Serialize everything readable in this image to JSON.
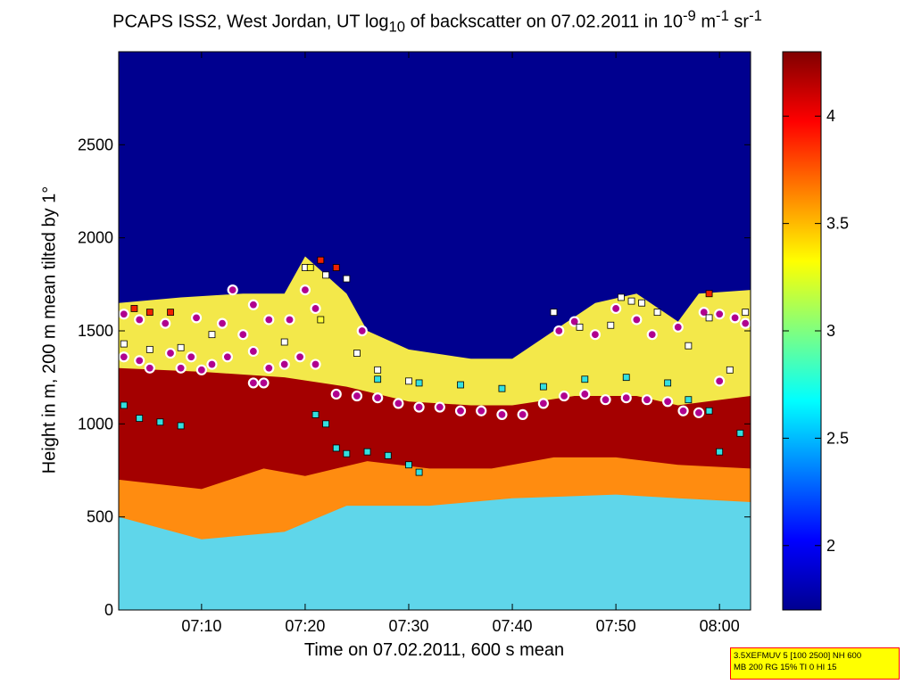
{
  "figure": {
    "title_parts": {
      "p1": "PCAPS ISS2, West Jordan, UT log",
      "sub1": "10",
      "p2": " of backscatter on 07.02.2011 in 10",
      "sup1": "-9",
      "p3": " m",
      "sup2": "-1",
      "p4": " sr",
      "sup3": "-1"
    },
    "info_box": {
      "line1": "3.5XEFMUV 5 [100 2500] NH 600",
      "line2": "MB 200 RG 15% TI 0 HI 15"
    }
  },
  "chart_data": {
    "type": "heatmap",
    "xlabel": "Time on 07.02.2011, 600 s mean",
    "ylabel": "Height in m, 200 m mean tilted by 1°",
    "x_range_minutes_after_0700": [
      2,
      63
    ],
    "x_ticks": [
      {
        "label": "07:10",
        "minute": 10
      },
      {
        "label": "07:20",
        "minute": 20
      },
      {
        "label": "07:30",
        "minute": 30
      },
      {
        "label": "07:40",
        "minute": 40
      },
      {
        "label": "07:50",
        "minute": 50
      },
      {
        "label": "08:00",
        "minute": 60
      }
    ],
    "ylim": [
      0,
      3000
    ],
    "y_ticks": [
      0,
      500,
      1000,
      1500,
      2000,
      2500
    ],
    "colorbar": {
      "range": [
        1.7,
        4.3
      ],
      "ticks": [
        2,
        2.5,
        3,
        3.5,
        4
      ],
      "tick_labels": [
        "2",
        "2.5",
        "3",
        "3.5",
        "4"
      ],
      "colormap": "jet"
    },
    "layers": {
      "aerosol_top": [
        {
          "minute": 2,
          "height": 1650
        },
        {
          "minute": 8,
          "height": 1680
        },
        {
          "minute": 14,
          "height": 1700
        },
        {
          "minute": 18,
          "height": 1700
        },
        {
          "minute": 20,
          "height": 1900
        },
        {
          "minute": 22,
          "height": 1800
        },
        {
          "minute": 24,
          "height": 1700
        },
        {
          "minute": 26,
          "height": 1500
        },
        {
          "minute": 30,
          "height": 1400
        },
        {
          "minute": 36,
          "height": 1350
        },
        {
          "minute": 40,
          "height": 1350
        },
        {
          "minute": 44,
          "height": 1500
        },
        {
          "minute": 48,
          "height": 1650
        },
        {
          "minute": 52,
          "height": 1700
        },
        {
          "minute": 56,
          "height": 1550
        },
        {
          "minute": 58,
          "height": 1700
        },
        {
          "minute": 63,
          "height": 1720
        }
      ],
      "dense_top": [
        {
          "minute": 2,
          "height": 1300
        },
        {
          "minute": 10,
          "height": 1280
        },
        {
          "minute": 18,
          "height": 1250
        },
        {
          "minute": 24,
          "height": 1200
        },
        {
          "minute": 30,
          "height": 1120
        },
        {
          "minute": 36,
          "height": 1100
        },
        {
          "minute": 40,
          "height": 1100
        },
        {
          "minute": 46,
          "height": 1150
        },
        {
          "minute": 52,
          "height": 1150
        },
        {
          "minute": 56,
          "height": 1100
        },
        {
          "minute": 63,
          "height": 1150
        }
      ],
      "dense_bottom": [
        {
          "minute": 2,
          "height": 700
        },
        {
          "minute": 10,
          "height": 650
        },
        {
          "minute": 16,
          "height": 760
        },
        {
          "minute": 20,
          "height": 720
        },
        {
          "minute": 26,
          "height": 800
        },
        {
          "minute": 32,
          "height": 760
        },
        {
          "minute": 38,
          "height": 760
        },
        {
          "minute": 44,
          "height": 820
        },
        {
          "minute": 50,
          "height": 820
        },
        {
          "minute": 56,
          "height": 780
        },
        {
          "minute": 63,
          "height": 760
        }
      ],
      "moderate_bottom": [
        {
          "minute": 2,
          "height": 500
        },
        {
          "minute": 10,
          "height": 380
        },
        {
          "minute": 18,
          "height": 420
        },
        {
          "minute": 24,
          "height": 560
        },
        {
          "minute": 32,
          "height": 560
        },
        {
          "minute": 40,
          "height": 600
        },
        {
          "minute": 50,
          "height": 620
        },
        {
          "minute": 56,
          "height": 600
        },
        {
          "minute": 63,
          "height": 580
        }
      ]
    },
    "markers": {
      "circles_purple_upper": [
        {
          "minute": 2.5,
          "height": 1590
        },
        {
          "minute": 4,
          "height": 1560
        },
        {
          "minute": 6.5,
          "height": 1540
        },
        {
          "minute": 9.5,
          "height": 1570
        },
        {
          "minute": 12,
          "height": 1540
        },
        {
          "minute": 13,
          "height": 1720
        },
        {
          "minute": 15,
          "height": 1640
        },
        {
          "minute": 16.5,
          "height": 1560
        },
        {
          "minute": 18.5,
          "height": 1560
        },
        {
          "minute": 20,
          "height": 1720
        },
        {
          "minute": 21,
          "height": 1620
        },
        {
          "minute": 25.5,
          "height": 1500
        },
        {
          "minute": 44.5,
          "height": 1500
        },
        {
          "minute": 46,
          "height": 1550
        },
        {
          "minute": 48,
          "height": 1480
        },
        {
          "minute": 50,
          "height": 1620
        },
        {
          "minute": 52,
          "height": 1560
        },
        {
          "minute": 53.5,
          "height": 1480
        },
        {
          "minute": 56,
          "height": 1520
        },
        {
          "minute": 58.5,
          "height": 1600
        },
        {
          "minute": 60,
          "height": 1590
        },
        {
          "minute": 61.5,
          "height": 1570
        },
        {
          "minute": 62.5,
          "height": 1540
        }
      ],
      "circles_purple_mid": [
        {
          "minute": 2.5,
          "height": 1360
        },
        {
          "minute": 4,
          "height": 1340
        },
        {
          "minute": 5,
          "height": 1300
        },
        {
          "minute": 7,
          "height": 1380
        },
        {
          "minute": 8,
          "height": 1300
        },
        {
          "minute": 9,
          "height": 1360
        },
        {
          "minute": 10,
          "height": 1290
        },
        {
          "minute": 11,
          "height": 1320
        },
        {
          "minute": 12.5,
          "height": 1360
        },
        {
          "minute": 14,
          "height": 1480
        },
        {
          "minute": 15,
          "height": 1390
        },
        {
          "minute": 16.5,
          "height": 1300
        },
        {
          "minute": 18,
          "height": 1320
        },
        {
          "minute": 19.5,
          "height": 1360
        },
        {
          "minute": 21,
          "height": 1320
        },
        {
          "minute": 15,
          "height": 1220
        },
        {
          "minute": 16,
          "height": 1220
        }
      ],
      "circles_purple_lower": [
        {
          "minute": 23,
          "height": 1160
        },
        {
          "minute": 25,
          "height": 1150
        },
        {
          "minute": 27,
          "height": 1140
        },
        {
          "minute": 29,
          "height": 1110
        },
        {
          "minute": 31,
          "height": 1090
        },
        {
          "minute": 33,
          "height": 1090
        },
        {
          "minute": 35,
          "height": 1070
        },
        {
          "minute": 37,
          "height": 1070
        },
        {
          "minute": 39,
          "height": 1050
        },
        {
          "minute": 41,
          "height": 1050
        },
        {
          "minute": 43,
          "height": 1110
        },
        {
          "minute": 45,
          "height": 1150
        },
        {
          "minute": 47,
          "height": 1160
        },
        {
          "minute": 49,
          "height": 1130
        },
        {
          "minute": 51,
          "height": 1140
        },
        {
          "minute": 53,
          "height": 1130
        },
        {
          "minute": 55,
          "height": 1120
        },
        {
          "minute": 56.5,
          "height": 1070
        },
        {
          "minute": 58,
          "height": 1060
        },
        {
          "minute": 60,
          "height": 1230
        }
      ],
      "squares_white": [
        {
          "minute": 2.5,
          "height": 1430
        },
        {
          "minute": 5,
          "height": 1400
        },
        {
          "minute": 8,
          "height": 1410
        },
        {
          "minute": 11,
          "height": 1480
        },
        {
          "minute": 18,
          "height": 1440
        },
        {
          "minute": 20,
          "height": 1840
        },
        {
          "minute": 22,
          "height": 1800
        },
        {
          "minute": 24,
          "height": 1780
        },
        {
          "minute": 25,
          "height": 1380
        },
        {
          "minute": 27,
          "height": 1290
        },
        {
          "minute": 30,
          "height": 1230
        },
        {
          "minute": 44,
          "height": 1600
        },
        {
          "minute": 46.5,
          "height": 1520
        },
        {
          "minute": 49.5,
          "height": 1530
        },
        {
          "minute": 50.5,
          "height": 1680
        },
        {
          "minute": 51.5,
          "height": 1660
        },
        {
          "minute": 52.5,
          "height": 1650
        },
        {
          "minute": 54,
          "height": 1600
        },
        {
          "minute": 57,
          "height": 1420
        },
        {
          "minute": 59,
          "height": 1570
        },
        {
          "minute": 61,
          "height": 1290
        },
        {
          "minute": 62.5,
          "height": 1600
        }
      ],
      "squares_cyan": [
        {
          "minute": 2.5,
          "height": 1100
        },
        {
          "minute": 4,
          "height": 1030
        },
        {
          "minute": 6,
          "height": 1010
        },
        {
          "minute": 8,
          "height": 990
        },
        {
          "minute": 21,
          "height": 1050
        },
        {
          "minute": 22,
          "height": 1000
        },
        {
          "minute": 23,
          "height": 870
        },
        {
          "minute": 24,
          "height": 840
        },
        {
          "minute": 26,
          "height": 850
        },
        {
          "minute": 28,
          "height": 830
        },
        {
          "minute": 30,
          "height": 780
        },
        {
          "minute": 31,
          "height": 740
        },
        {
          "minute": 27,
          "height": 1240
        },
        {
          "minute": 31,
          "height": 1220
        },
        {
          "minute": 35,
          "height": 1210
        },
        {
          "minute": 39,
          "height": 1190
        },
        {
          "minute": 43,
          "height": 1200
        },
        {
          "minute": 47,
          "height": 1240
        },
        {
          "minute": 51,
          "height": 1250
        },
        {
          "minute": 55,
          "height": 1220
        },
        {
          "minute": 57,
          "height": 1130
        },
        {
          "minute": 59,
          "height": 1070
        },
        {
          "minute": 60,
          "height": 850
        },
        {
          "minute": 62,
          "height": 950
        }
      ],
      "squares_red": [
        {
          "minute": 3.5,
          "height": 1620
        },
        {
          "minute": 5,
          "height": 1600
        },
        {
          "minute": 7,
          "height": 1600
        },
        {
          "minute": 21.5,
          "height": 1880
        },
        {
          "minute": 23,
          "height": 1840
        },
        {
          "minute": 59,
          "height": 1700
        }
      ],
      "squares_yellow": [
        {
          "minute": 20.5,
          "height": 1840
        },
        {
          "minute": 21.5,
          "height": 1560
        }
      ]
    }
  }
}
